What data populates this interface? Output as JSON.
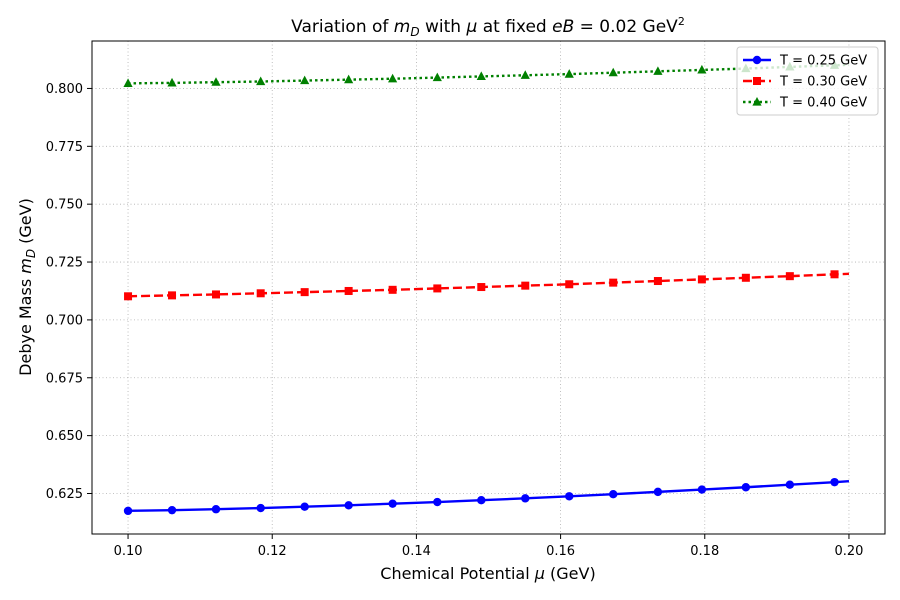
{
  "chart_data": {
    "type": "line",
    "title": "Variation of m_D with μ at fixed eB = 0.02 GeV²",
    "xlabel": "Chemical Potential μ (GeV)",
    "ylabel": "Debye Mass m_D (GeV)",
    "xlim": [
      0.095,
      0.205
    ],
    "ylim": [
      0.6075,
      0.8205
    ],
    "xticks": [
      0.1,
      0.12,
      0.14,
      0.16,
      0.18,
      0.2
    ],
    "xtick_labels": [
      "0.10",
      "0.12",
      "0.14",
      "0.16",
      "0.18",
      "0.20"
    ],
    "yticks": [
      0.625,
      0.65,
      0.675,
      0.7,
      0.725,
      0.75,
      0.775,
      0.8
    ],
    "ytick_labels": [
      "0.625",
      "0.650",
      "0.675",
      "0.700",
      "0.725",
      "0.750",
      "0.775",
      "0.800"
    ],
    "grid": true,
    "legend_position": "top-right",
    "x": [
      0.1,
      0.1061,
      0.1122,
      0.1184,
      0.1245,
      0.1306,
      0.1367,
      0.1429,
      0.149,
      0.1551,
      0.1612,
      0.1673,
      0.1735,
      0.1796,
      0.1857,
      0.1918,
      0.198,
      0.2
    ],
    "series": [
      {
        "name": "T = 0.25 GeV",
        "color": "#0000ff",
        "marker": "circle",
        "linestyle": "solid",
        "values": [
          0.6175,
          0.6178,
          0.6182,
          0.6187,
          0.6193,
          0.6199,
          0.6206,
          0.6213,
          0.6221,
          0.6229,
          0.6238,
          0.6247,
          0.6257,
          0.6267,
          0.6277,
          0.6288,
          0.6299,
          0.6303
        ]
      },
      {
        "name": "T = 0.30 GeV",
        "color": "#ff0000",
        "marker": "square",
        "linestyle": "dashed",
        "values": [
          0.7102,
          0.7106,
          0.711,
          0.7115,
          0.712,
          0.7125,
          0.713,
          0.7136,
          0.7142,
          0.7148,
          0.7154,
          0.7161,
          0.7168,
          0.7175,
          0.7182,
          0.7189,
          0.7197,
          0.7199
        ]
      },
      {
        "name": "T = 0.40 GeV",
        "color": "#008000",
        "marker": "triangle",
        "linestyle": "dotted",
        "values": [
          0.8022,
          0.8024,
          0.8027,
          0.803,
          0.8034,
          0.8038,
          0.8042,
          0.8047,
          0.8052,
          0.8057,
          0.8062,
          0.8068,
          0.8074,
          0.808,
          0.8086,
          0.8093,
          0.81,
          0.8102
        ]
      }
    ]
  }
}
